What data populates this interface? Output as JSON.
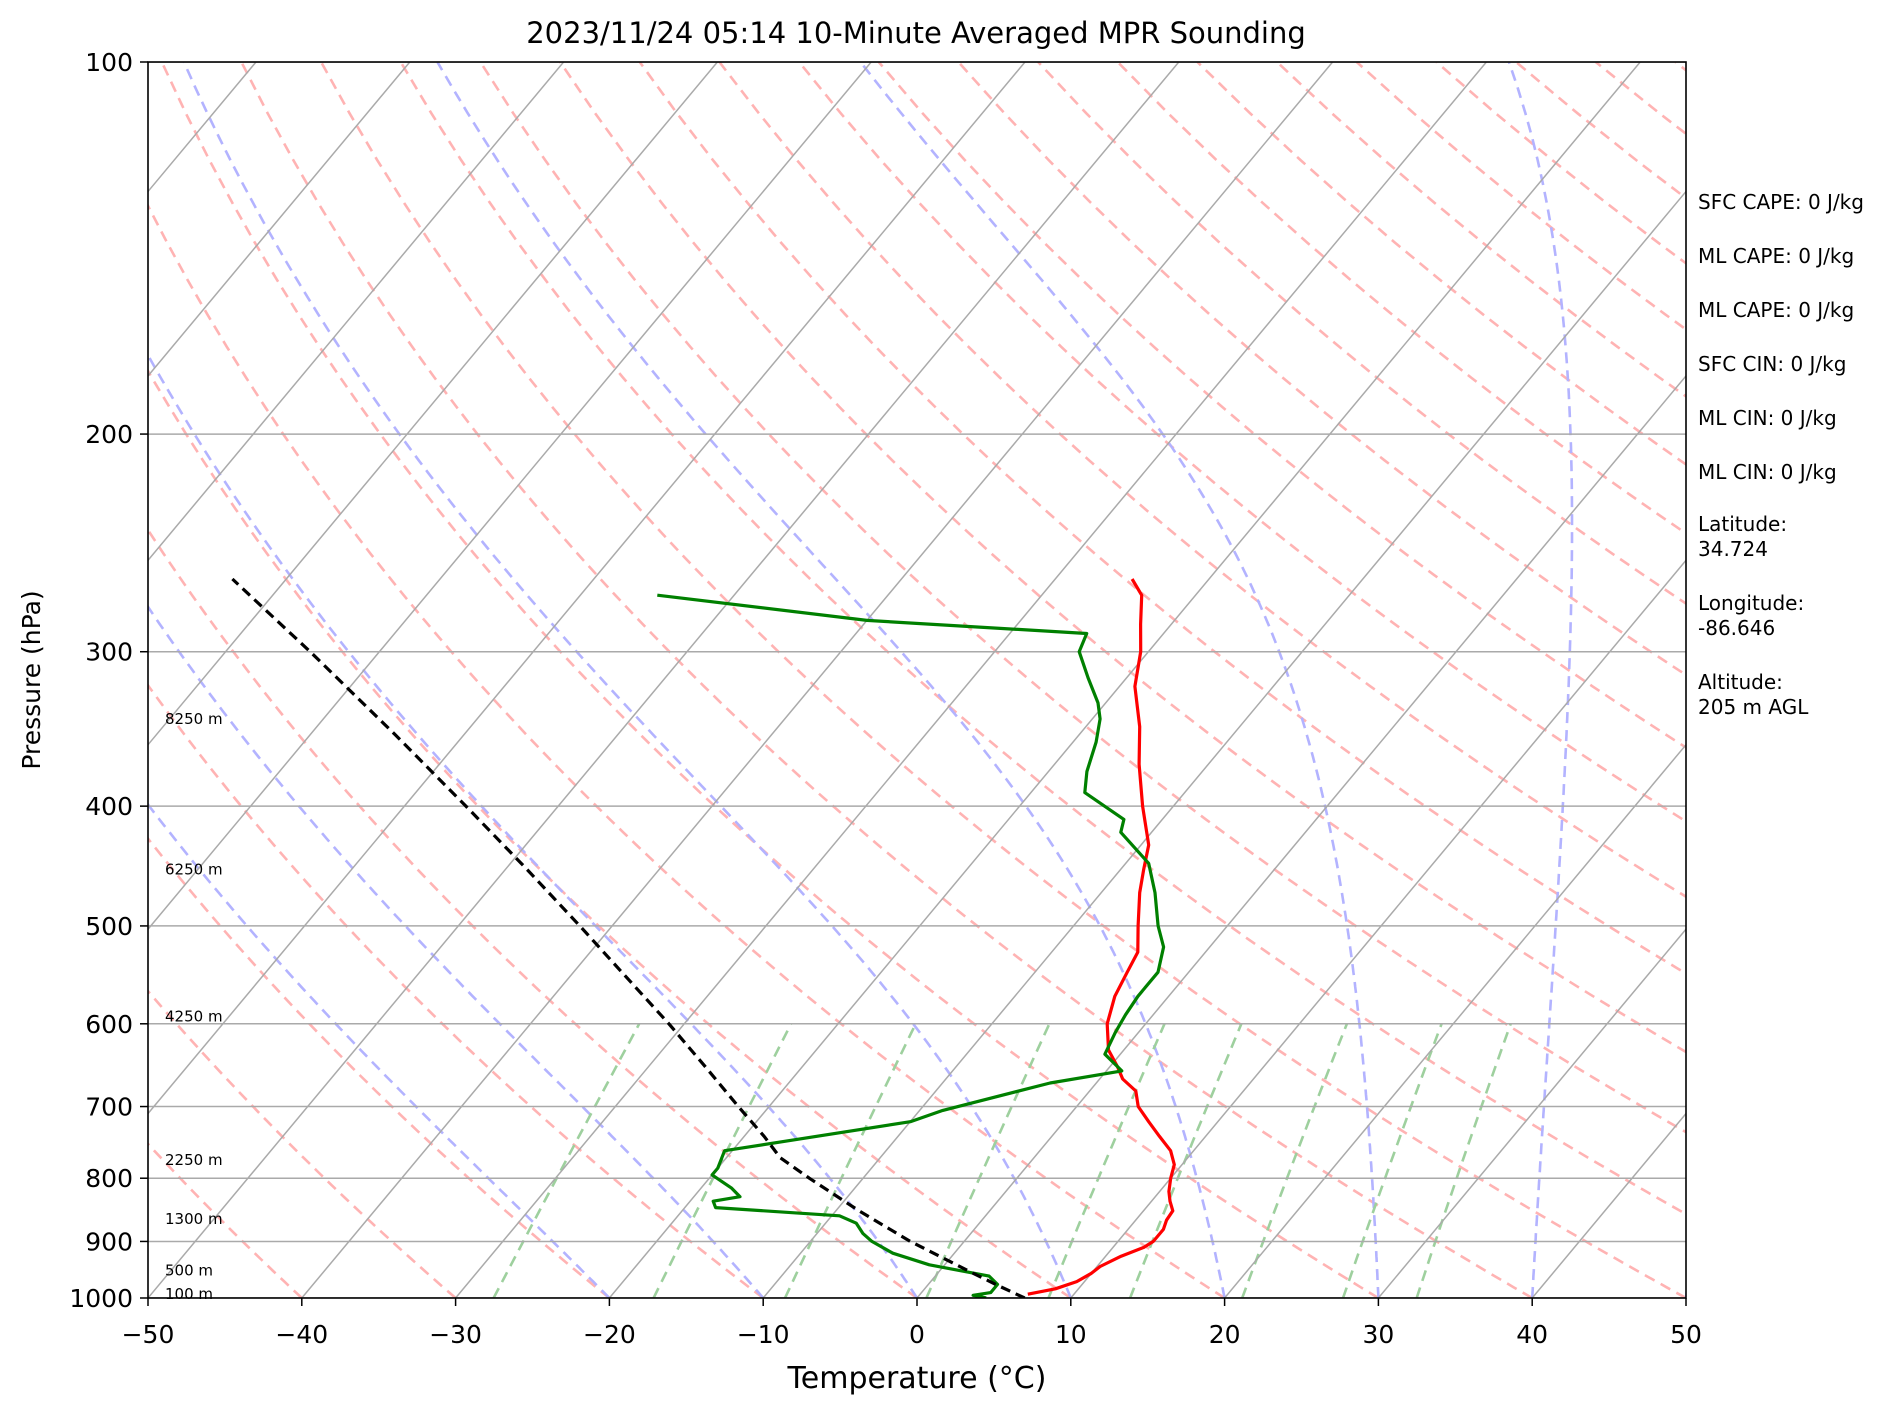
{
  "chart_data": {
    "type": "skew-t",
    "title": "2023/11/24 05:14 10-Minute Averaged MPR Sounding",
    "xlabel": "Temperature (°C)",
    "ylabel": "Pressure (hPa)",
    "xlim": [
      -50,
      50
    ],
    "ylim": [
      1000,
      100
    ],
    "y_scale": "log",
    "x_ticks": [
      "−50",
      "−40",
      "−30",
      "−20",
      "−10",
      "0",
      "10",
      "20",
      "30",
      "40",
      "50"
    ],
    "y_ticks": [
      "100",
      "200",
      "300",
      "400",
      "500",
      "600",
      "700",
      "800",
      "900",
      "1000"
    ],
    "grid": true,
    "colors": {
      "temperature": "#ff0000",
      "dewpoint": "#008000",
      "parcel": "#000000",
      "isotherm": "#aaaaaa",
      "dry_adiabat": "#ffb3b3",
      "moist_adiabat": "#b3b3ff",
      "mixing_ratio": "#9ed09e"
    },
    "heights": [
      {
        "label": "100 m",
        "p": 993
      },
      {
        "label": "500 m",
        "p": 950
      },
      {
        "label": "1300 m",
        "p": 863
      },
      {
        "label": "2250 m",
        "p": 773
      },
      {
        "label": "4250 m",
        "p": 592
      },
      {
        "label": "6250 m",
        "p": 450
      },
      {
        "label": "8250 m",
        "p": 340
      }
    ],
    "series": [
      {
        "role": "temperature",
        "points": [
          [
            993,
            7.0
          ],
          [
            983,
            8.5
          ],
          [
            970,
            9.5
          ],
          [
            955,
            10.0
          ],
          [
            943,
            10.2
          ],
          [
            925,
            11.0
          ],
          [
            910,
            12.0
          ],
          [
            900,
            12.3
          ],
          [
            880,
            12.3
          ],
          [
            865,
            12.0
          ],
          [
            850,
            11.9
          ],
          [
            835,
            11.2
          ],
          [
            820,
            10.6
          ],
          [
            800,
            10.0
          ],
          [
            780,
            9.5
          ],
          [
            760,
            8.5
          ],
          [
            740,
            7.0
          ],
          [
            720,
            5.5
          ],
          [
            700,
            4.0
          ],
          [
            680,
            3.0
          ],
          [
            665,
            1.5
          ],
          [
            650,
            0.5
          ],
          [
            630,
            -1.0
          ],
          [
            600,
            -2.5
          ],
          [
            570,
            -3.5
          ],
          [
            545,
            -4.0
          ],
          [
            525,
            -4.4
          ],
          [
            500,
            -5.8
          ],
          [
            470,
            -7.5
          ],
          [
            450,
            -8.5
          ],
          [
            430,
            -9.5
          ],
          [
            400,
            -12.0
          ],
          [
            370,
            -14.5
          ],
          [
            345,
            -16.5
          ],
          [
            320,
            -19.0
          ],
          [
            300,
            -20.5
          ],
          [
            285,
            -22.0
          ],
          [
            270,
            -23.5
          ],
          [
            262,
            -25.0
          ]
        ]
      },
      {
        "role": "dewpoint",
        "points": [
          [
            1000,
            4.5
          ],
          [
            995,
            3.5
          ],
          [
            990,
            4.5
          ],
          [
            975,
            4.5
          ],
          [
            960,
            3.5
          ],
          [
            940,
            -1.0
          ],
          [
            920,
            -4.0
          ],
          [
            900,
            -6.0
          ],
          [
            887,
            -7.0
          ],
          [
            870,
            -8.0
          ],
          [
            858,
            -9.5
          ],
          [
            845,
            -18.0
          ],
          [
            835,
            -18.5
          ],
          [
            828,
            -17.0
          ],
          [
            815,
            -18.0
          ],
          [
            795,
            -20.0
          ],
          [
            785,
            -20.0
          ],
          [
            760,
            -20.5
          ],
          [
            720,
            -10.0
          ],
          [
            705,
            -8.5
          ],
          [
            670,
            -3.0
          ],
          [
            655,
            1.0
          ],
          [
            635,
            -1.0
          ],
          [
            610,
            -1.5
          ],
          [
            590,
            -1.8
          ],
          [
            570,
            -2.0
          ],
          [
            545,
            -2.0
          ],
          [
            520,
            -3.0
          ],
          [
            500,
            -4.5
          ],
          [
            470,
            -6.5
          ],
          [
            445,
            -8.5
          ],
          [
            420,
            -12.0
          ],
          [
            410,
            -12.5
          ],
          [
            390,
            -16.5
          ],
          [
            375,
            -17.5
          ],
          [
            355,
            -18.5
          ],
          [
            340,
            -19.5
          ],
          [
            330,
            -20.5
          ],
          [
            315,
            -22.5
          ],
          [
            300,
            -24.5
          ],
          [
            290,
            -25.0
          ],
          [
            283,
            -40.0
          ],
          [
            270,
            -55.0
          ]
        ]
      },
      {
        "role": "parcel",
        "points": [
          [
            1000,
            7.0
          ],
          [
            978,
            4.7
          ],
          [
            950,
            1.8
          ],
          [
            900,
            -3.5
          ],
          [
            850,
            -8.5
          ],
          [
            800,
            -13.5
          ],
          [
            770,
            -16.5
          ],
          [
            740,
            -18.7
          ],
          [
            700,
            -22.0
          ],
          [
            650,
            -26.3
          ],
          [
            600,
            -31.0
          ],
          [
            550,
            -36.3
          ],
          [
            500,
            -42.1
          ],
          [
            450,
            -48.6
          ],
          [
            400,
            -56.0
          ],
          [
            350,
            -64.5
          ],
          [
            300,
            -74.5
          ],
          [
            270,
            -81.5
          ],
          [
            262,
            -83.5
          ]
        ]
      }
    ]
  },
  "annotations": [
    "SFC CAPE: 0 J/kg",
    "ML CAPE: 0 J/kg",
    "ML CAPE: 0 J/kg",
    "SFC CIN: 0 J/kg",
    "ML CIN: 0 J/kg",
    "ML CIN: 0 J/kg",
    "Latitude:\n34.724",
    "Longitude:\n-86.646",
    "Altitude:\n205 m AGL"
  ]
}
